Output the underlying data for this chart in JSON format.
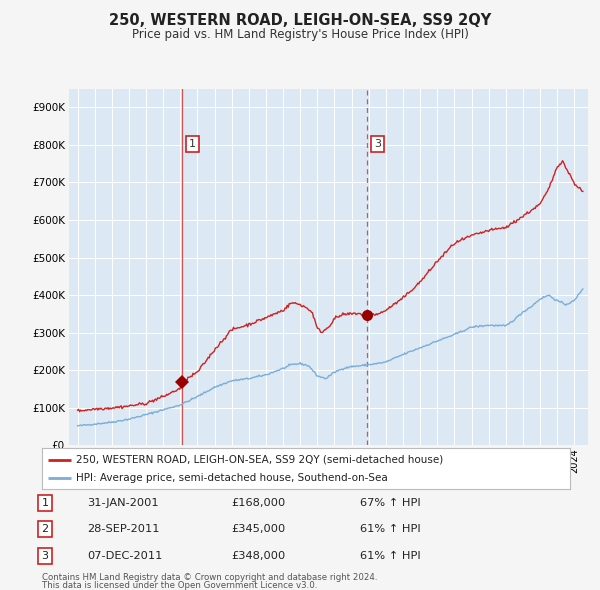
{
  "title": "250, WESTERN ROAD, LEIGH-ON-SEA, SS9 2QY",
  "subtitle": "Price paid vs. HM Land Registry's House Price Index (HPI)",
  "legend_line1": "250, WESTERN ROAD, LEIGH-ON-SEA, SS9 2QY (semi-detached house)",
  "legend_line2": "HPI: Average price, semi-detached house, Southend-on-Sea",
  "footer1": "Contains HM Land Registry data © Crown copyright and database right 2024.",
  "footer2": "This data is licensed under the Open Government Licence v3.0.",
  "table": [
    {
      "num": "1",
      "date": "31-JAN-2001",
      "price": "£168,000",
      "change": "67% ↑ HPI"
    },
    {
      "num": "2",
      "date": "28-SEP-2011",
      "price": "£345,000",
      "change": "61% ↑ HPI"
    },
    {
      "num": "3",
      "date": "07-DEC-2011",
      "price": "£348,000",
      "change": "61% ↑ HPI"
    }
  ],
  "hpi_color": "#7aaed6",
  "price_color": "#cc2222",
  "background_color": "#f5f5f5",
  "plot_bg_color": "#dde8f5",
  "grid_color": "#ffffff",
  "ylim": [
    0,
    950000
  ],
  "yticks": [
    0,
    100000,
    200000,
    300000,
    400000,
    500000,
    600000,
    700000,
    800000,
    900000
  ],
  "ytick_labels": [
    "£0",
    "£100K",
    "£200K",
    "£300K",
    "£400K",
    "£500K",
    "£600K",
    "£700K",
    "£800K",
    "£900K"
  ],
  "xlim_start": 1994.5,
  "xlim_end": 2024.8,
  "hpi_anchors": [
    [
      1995.0,
      52000
    ],
    [
      1996.0,
      57000
    ],
    [
      1997.0,
      62000
    ],
    [
      1998.0,
      70000
    ],
    [
      1999.0,
      82000
    ],
    [
      2000.0,
      95000
    ],
    [
      2001.0,
      108000
    ],
    [
      2002.0,
      130000
    ],
    [
      2003.0,
      155000
    ],
    [
      2004.0,
      172000
    ],
    [
      2005.0,
      178000
    ],
    [
      2006.0,
      188000
    ],
    [
      2007.0,
      205000
    ],
    [
      2007.5,
      215000
    ],
    [
      2008.0,
      218000
    ],
    [
      2008.5,
      212000
    ],
    [
      2009.0,
      185000
    ],
    [
      2009.5,
      178000
    ],
    [
      2010.0,
      195000
    ],
    [
      2010.5,
      205000
    ],
    [
      2011.0,
      210000
    ],
    [
      2011.5,
      212000
    ],
    [
      2012.0,
      215000
    ],
    [
      2012.5,
      218000
    ],
    [
      2013.0,
      222000
    ],
    [
      2014.0,
      242000
    ],
    [
      2015.0,
      260000
    ],
    [
      2016.0,
      278000
    ],
    [
      2017.0,
      295000
    ],
    [
      2018.0,
      315000
    ],
    [
      2019.0,
      320000
    ],
    [
      2020.0,
      318000
    ],
    [
      2020.5,
      335000
    ],
    [
      2021.0,
      355000
    ],
    [
      2021.5,
      370000
    ],
    [
      2022.0,
      390000
    ],
    [
      2022.5,
      400000
    ],
    [
      2023.0,
      385000
    ],
    [
      2023.5,
      375000
    ],
    [
      2024.0,
      385000
    ],
    [
      2024.5,
      418000
    ]
  ],
  "price_anchors": [
    [
      1995.0,
      92000
    ],
    [
      1996.0,
      97000
    ],
    [
      1997.0,
      100000
    ],
    [
      1998.0,
      105000
    ],
    [
      1999.0,
      112000
    ],
    [
      2000.0,
      130000
    ],
    [
      2001.0,
      152000
    ],
    [
      2001.09,
      168000
    ],
    [
      2002.0,
      195000
    ],
    [
      2003.0,
      255000
    ],
    [
      2004.0,
      308000
    ],
    [
      2005.0,
      322000
    ],
    [
      2006.0,
      340000
    ],
    [
      2007.0,
      360000
    ],
    [
      2007.5,
      380000
    ],
    [
      2008.0,
      375000
    ],
    [
      2008.3,
      368000
    ],
    [
      2008.7,
      355000
    ],
    [
      2009.0,
      310000
    ],
    [
      2009.3,
      302000
    ],
    [
      2009.7,
      318000
    ],
    [
      2010.0,
      338000
    ],
    [
      2010.5,
      348000
    ],
    [
      2011.0,
      350000
    ],
    [
      2011.4,
      352000
    ],
    [
      2011.73,
      345000
    ],
    [
      2011.92,
      348000
    ],
    [
      2012.0,
      352000
    ],
    [
      2012.5,
      348000
    ],
    [
      2013.0,
      360000
    ],
    [
      2014.0,
      392000
    ],
    [
      2015.0,
      435000
    ],
    [
      2016.0,
      490000
    ],
    [
      2017.0,
      538000
    ],
    [
      2018.0,
      558000
    ],
    [
      2019.0,
      572000
    ],
    [
      2020.0,
      580000
    ],
    [
      2021.0,
      610000
    ],
    [
      2022.0,
      642000
    ],
    [
      2022.5,
      682000
    ],
    [
      2023.0,
      742000
    ],
    [
      2023.3,
      758000
    ],
    [
      2023.5,
      740000
    ],
    [
      2024.0,
      698000
    ],
    [
      2024.5,
      675000
    ]
  ],
  "marker1_x": 2001.09,
  "marker1_y": 168000,
  "marker23_x": 2011.92,
  "marker23_y": 348000,
  "vline1_x": 2001.09,
  "vline3_x": 2011.92
}
